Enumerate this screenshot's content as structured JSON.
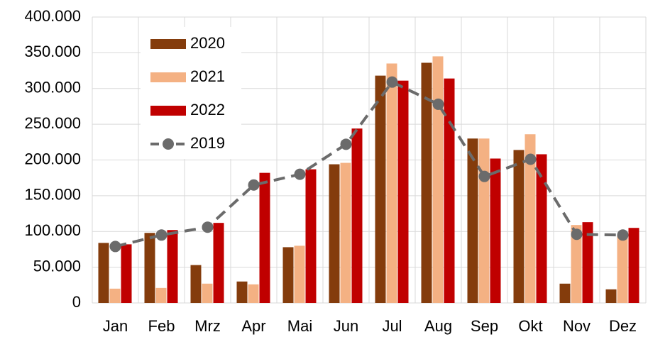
{
  "chart_data": {
    "type": "bar",
    "categories": [
      "Jan",
      "Feb",
      "Mrz",
      "Apr",
      "Mai",
      "Jun",
      "Jul",
      "Aug",
      "Sep",
      "Okt",
      "Nov",
      "Dez"
    ],
    "series": [
      {
        "name": "2020",
        "color": "#843c0c",
        "values": [
          84000,
          98000,
          53000,
          30000,
          78000,
          194000,
          318000,
          336000,
          230000,
          214000,
          27000,
          19000
        ]
      },
      {
        "name": "2021",
        "color": "#f4b183",
        "values": [
          20000,
          21000,
          27000,
          26000,
          80000,
          196000,
          335000,
          345000,
          230000,
          236000,
          109000,
          95000
        ]
      },
      {
        "name": "2022",
        "color": "#c00000",
        "values": [
          82000,
          102000,
          112000,
          182000,
          187000,
          244000,
          311000,
          314000,
          202000,
          208000,
          113000,
          105000
        ]
      },
      {
        "name": "2019",
        "type": "line",
        "color": "#6b6b6b",
        "values": [
          79000,
          95000,
          106000,
          165000,
          180000,
          222000,
          309000,
          278000,
          177000,
          201000,
          96000,
          95000
        ]
      }
    ],
    "ylim": [
      0,
      400000
    ],
    "yticks": [
      0,
      {
        "value": 50000,
        "label": "50.000"
      },
      {
        "value": 100000,
        "label": "100.000"
      },
      {
        "value": 150000,
        "label": "150.000"
      },
      {
        "value": 200000,
        "label": "200.000"
      },
      {
        "value": 250000,
        "label": "250.000"
      },
      {
        "value": 300000,
        "label": "300.000"
      },
      {
        "value": 350000,
        "label": "350.000"
      },
      {
        "value": 400000,
        "label": "400.000"
      }
    ],
    "grid": true,
    "legend": "upper left"
  }
}
